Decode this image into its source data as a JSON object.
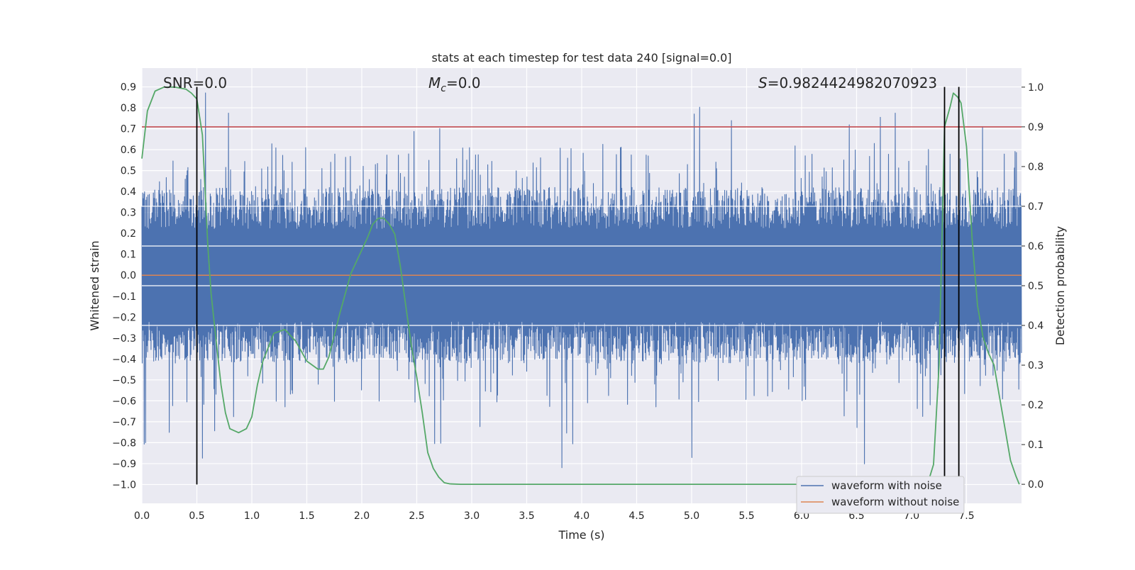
{
  "chart_data": {
    "type": "line",
    "title": "stats at each timestep for test data 240 [signal=0.0]",
    "xlabel": "Time (s)",
    "ylabel_left": "Whitened strain",
    "ylabel_right": "Detection probability",
    "xlim": [
      0.0,
      8.0
    ],
    "ylim_left": [
      -1.09,
      0.99
    ],
    "ylim_right": [
      -0.048,
      1.048
    ],
    "xticks": [
      0.0,
      0.5,
      1.0,
      1.5,
      2.0,
      2.5,
      3.0,
      3.5,
      4.0,
      4.5,
      5.0,
      5.5,
      6.0,
      6.5,
      7.0,
      7.5
    ],
    "xtick_labels": [
      "0.0",
      "0.5",
      "1.0",
      "1.5",
      "2.0",
      "2.5",
      "3.0",
      "3.5",
      "4.0",
      "4.5",
      "5.0",
      "5.5",
      "6.0",
      "6.5",
      "7.0",
      "7.5"
    ],
    "yticks_left": [
      0.9,
      0.8,
      0.7,
      0.6,
      0.5,
      0.4,
      0.3,
      0.2,
      0.1,
      0.0,
      -0.1,
      -0.2,
      -0.3,
      -0.4,
      -0.5,
      -0.6,
      -0.7,
      -0.8,
      -0.9,
      -1.0
    ],
    "ytick_labels_left": [
      "0.9",
      "0.8",
      "0.7",
      "0.6",
      "0.5",
      "0.4",
      "0.3",
      "0.2",
      "0.1",
      "0.0",
      "−0.1",
      "−0.2",
      "−0.3",
      "−0.4",
      "−0.5",
      "−0.6",
      "−0.7",
      "−0.8",
      "−0.9",
      "−1.0"
    ],
    "yticks_right": [
      1.0,
      0.9,
      0.8,
      0.7,
      0.6,
      0.5,
      0.4,
      0.3,
      0.2,
      0.1,
      0.0
    ],
    "ytick_labels_right": [
      "1.0",
      "0.9",
      "0.8",
      "0.7",
      "0.6",
      "0.5",
      "0.4",
      "0.3",
      "0.2",
      "0.1",
      "0.0"
    ],
    "annotations": {
      "snr": "SNR=0.0",
      "mc_symbol": "M",
      "mc_sub": "c",
      "mc_rest": "=0.0",
      "s_symbol": "S",
      "s_rest": "=0.9824424982070923"
    },
    "threshold_probability": 0.9,
    "noise_band": {
      "typical_low": -0.45,
      "typical_high": 0.45,
      "peak_max": 0.88,
      "trough_min": -0.95
    },
    "detection_vlines_s": [
      0.5,
      7.3,
      7.43
    ],
    "vline_range_strain": [
      -1.0,
      0.9
    ],
    "series": [
      {
        "name": "waveform with noise",
        "axis": "left",
        "color": "#4c72b0",
        "description": "whitened noise trace sampled over 0-8 s"
      },
      {
        "name": "waveform without noise",
        "axis": "left",
        "color": "#dd8452",
        "x": [
          0.0,
          8.0
        ],
        "y": [
          0.0,
          0.0
        ]
      },
      {
        "name": "detection probability",
        "axis": "right",
        "color": "#55a868",
        "x": [
          0.0,
          0.05,
          0.12,
          0.2,
          0.3,
          0.4,
          0.45,
          0.5,
          0.55,
          0.6,
          0.63,
          0.68,
          0.72,
          0.76,
          0.8,
          0.88,
          0.95,
          1.0,
          1.05,
          1.1,
          1.2,
          1.3,
          1.4,
          1.5,
          1.6,
          1.65,
          1.7,
          1.8,
          1.9,
          2.0,
          2.05,
          2.1,
          2.15,
          2.2,
          2.25,
          2.3,
          2.35,
          2.4,
          2.45,
          2.5,
          2.55,
          2.6,
          2.65,
          2.7,
          2.75,
          2.8,
          2.9,
          3.5,
          4.5,
          5.5,
          6.5,
          7.0,
          7.15,
          7.2,
          7.25,
          7.3,
          7.35,
          7.38,
          7.42,
          7.45,
          7.5,
          7.55,
          7.6,
          7.65,
          7.7,
          7.75,
          7.8,
          7.85,
          7.9,
          7.95,
          7.98
        ],
        "y": [
          0.82,
          0.94,
          0.99,
          1.0,
          1.0,
          0.995,
          0.985,
          0.97,
          0.88,
          0.6,
          0.48,
          0.35,
          0.25,
          0.18,
          0.14,
          0.13,
          0.14,
          0.17,
          0.25,
          0.31,
          0.38,
          0.39,
          0.36,
          0.31,
          0.29,
          0.29,
          0.32,
          0.43,
          0.53,
          0.59,
          0.62,
          0.655,
          0.67,
          0.67,
          0.655,
          0.63,
          0.55,
          0.45,
          0.35,
          0.27,
          0.18,
          0.08,
          0.04,
          0.018,
          0.004,
          0.001,
          0.0,
          0.0,
          0.0,
          0.0,
          0.0,
          0.0,
          0.005,
          0.05,
          0.3,
          0.9,
          0.95,
          0.985,
          0.975,
          0.96,
          0.85,
          0.62,
          0.45,
          0.37,
          0.33,
          0.3,
          0.22,
          0.14,
          0.06,
          0.02,
          0.0
        ]
      },
      {
        "name": "detection threshold",
        "axis": "right",
        "color": "#c44e52",
        "x": [
          0.0,
          8.0
        ],
        "y": [
          0.9,
          0.9
        ]
      }
    ],
    "legend": {
      "placement": "lower-right",
      "entries": [
        {
          "label": "waveform with noise",
          "color": "#4c72b0"
        },
        {
          "label": "waveform without noise",
          "color": "#dd8452"
        }
      ]
    },
    "grid": true,
    "colors": {
      "plot_background": "#eaeaf2",
      "grid": "#ffffff",
      "text": "#262626",
      "vline": "#000000"
    }
  }
}
